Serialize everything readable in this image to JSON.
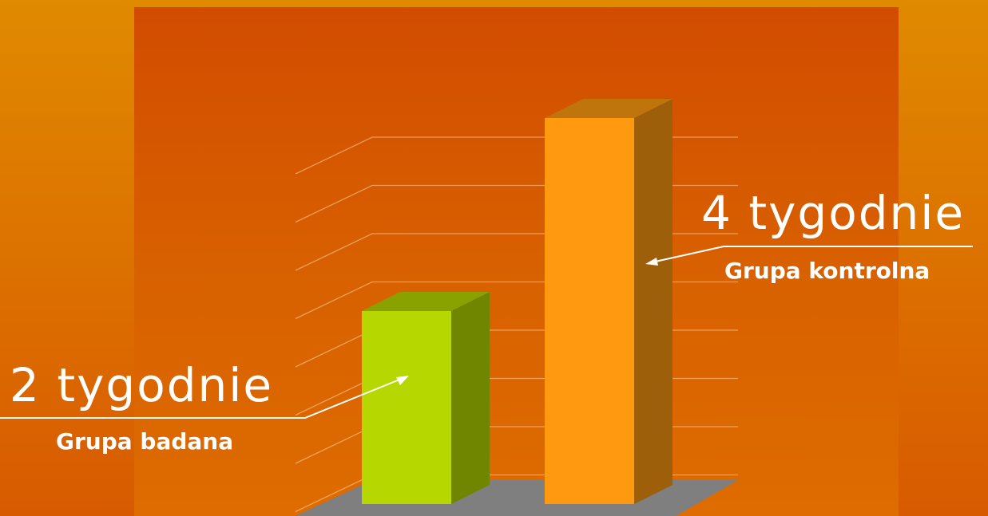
{
  "chart_data": {
    "type": "bar",
    "title": "",
    "xlabel": "",
    "ylabel": "",
    "grid": true,
    "ylim": [
      0,
      8
    ],
    "categories": [
      "Grupa badana",
      "Grupa kontrolna"
    ],
    "values": [
      4,
      8
    ],
    "bar_labels": [
      "2 tygodnie",
      "4 tygodnie"
    ],
    "colors": [
      "#b6d800",
      "#ff9a10"
    ]
  }
}
